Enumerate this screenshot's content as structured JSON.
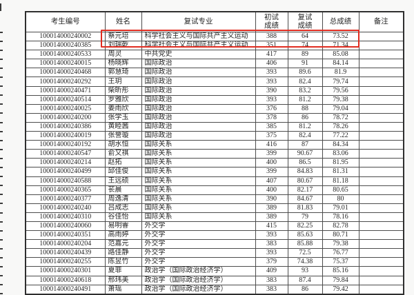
{
  "table": {
    "headers": [
      "考生编号",
      "姓名",
      "复试专业",
      "初试\n成绩",
      "复试\n成绩",
      "总成绩",
      "备注"
    ],
    "rows": [
      [
        "100014000240002",
        "蔡元培",
        "科学社会主义与国际共产主义运动",
        "388",
        "64",
        "73.52",
        ""
      ],
      [
        "100014000240385",
        "刘瑞乾",
        "科学社会主义与国际共产主义运动",
        "351",
        "74",
        "71.34",
        ""
      ],
      [
        "100014000240533",
        "周灵",
        "中共党史",
        "417",
        "89",
        "85.08",
        ""
      ],
      [
        "100014000240015",
        "杨晓辉",
        "国际政治",
        "406",
        "91",
        "84.14",
        ""
      ],
      [
        "100014000240468",
        "郭慧琦",
        "国际政治",
        "393",
        "89.6",
        "81.9",
        ""
      ],
      [
        "100014000240292",
        "王玥",
        "国际政治",
        "393",
        "82.4",
        "79.74",
        ""
      ],
      [
        "100014000240471",
        "柴昕彤",
        "国际政治",
        "390",
        "83.2",
        "79.56",
        ""
      ],
      [
        "100014000240514",
        "罗雅欣",
        "国际政治",
        "393",
        "81.2",
        "79.38",
        ""
      ],
      [
        "100014000240025",
        "姜雨欣",
        "国际政治",
        "376",
        "88",
        "79.04",
        ""
      ],
      [
        "100014000240200",
        "张学玉",
        "国际政治",
        "378",
        "86",
        "78.72",
        ""
      ],
      [
        "100014000240386",
        "黄睦茜",
        "国际政治",
        "385",
        "81.2",
        "78.26",
        ""
      ],
      [
        "100014000240019",
        "张誉璇",
        "国际政治",
        "375",
        "82.4",
        "77.22",
        ""
      ],
      [
        "100014000240192",
        "胡水恒",
        "国际关系",
        "416",
        "87",
        "84.34",
        ""
      ],
      [
        "100014000240547",
        "俞又祺",
        "国际关系",
        "399",
        "90.67",
        "83.06",
        ""
      ],
      [
        "100014000240214",
        "赵拓",
        "国际关系",
        "400",
        "86.5",
        "81.95",
        ""
      ],
      [
        "100014000240499",
        "邱佳俊",
        "国际关系",
        "399",
        "84.83",
        "81.31",
        ""
      ],
      [
        "100014000240588",
        "王远硕",
        "国际关系",
        "407",
        "80.67",
        "81.18",
        ""
      ],
      [
        "100014000240365",
        "苌晨",
        "国际关系",
        "400",
        "82.17",
        "80.65",
        ""
      ],
      [
        "100014000240377",
        "周逸清",
        "国际关系",
        "390",
        "84.67",
        "80",
        ""
      ],
      [
        "100014000240240",
        "吕成志",
        "国际关系",
        "389",
        "81.83",
        "79.01",
        ""
      ],
      [
        "100014000240310",
        "谷佳怡",
        "国际关系",
        "389",
        "79",
        "78.16",
        ""
      ],
      [
        "100014000240060",
        "易明睿",
        "外交学",
        "415",
        "82.25",
        "82.78",
        ""
      ],
      [
        "100014000240351",
        "高雨婷",
        "外交学",
        "393",
        "85.63",
        "80.71",
        ""
      ],
      [
        "100014000240204",
        "范嘉元",
        "外交学",
        "383",
        "85.88",
        "79.38",
        ""
      ],
      [
        "100014000240439",
        "路佳静",
        "外交学",
        "393",
        "72.5",
        "76.77",
        ""
      ],
      [
        "100014000240255",
        "陈昱竹",
        "外交学",
        "379",
        "74.38",
        "75.37",
        ""
      ],
      [
        "100014000240301",
        "夏菲",
        "政治学（国际政治经济学）",
        "409",
        "93",
        "85.16",
        ""
      ],
      [
        "100014000240618",
        "邢玮美",
        "政治学（国际政治经济学）",
        "383",
        "87.4",
        "79.84",
        ""
      ],
      [
        "100014000240491",
        "萧瑶",
        "政治学（国际政治经济学）",
        "383",
        "86",
        "79.42",
        ""
      ]
    ]
  },
  "highlight": {
    "row_index": 0,
    "color": "#e02b1f"
  }
}
